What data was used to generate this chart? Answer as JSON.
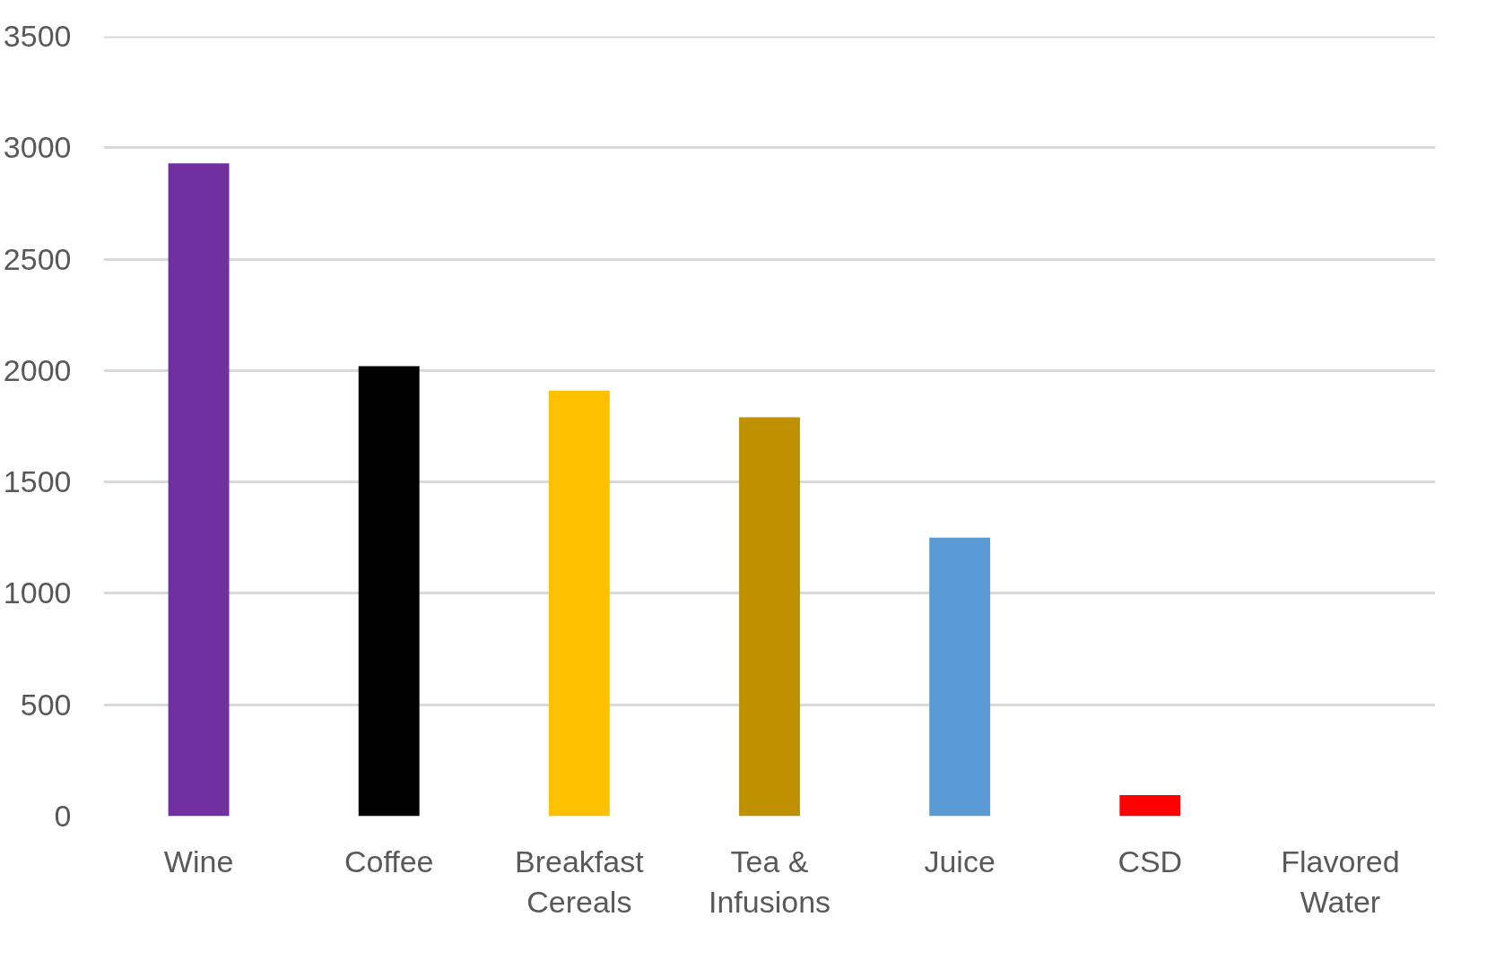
{
  "chart_data": {
    "type": "bar",
    "categories": [
      "Wine",
      "Coffee",
      "Breakfast Cereals",
      "Tea & Infusions",
      "Juice",
      "CSD",
      "Flavored Water"
    ],
    "values": [
      2930,
      2020,
      1910,
      1790,
      1250,
      95,
      null
    ],
    "colors": [
      "#7030a0",
      "#000000",
      "#ffc000",
      "#bf9000",
      "#5b9bd5",
      "#ff0000",
      null
    ],
    "ylim": [
      0,
      3500
    ],
    "yticks": [
      0,
      500,
      1000,
      1500,
      2000,
      2500,
      3000,
      3500
    ],
    "grid": "y"
  }
}
